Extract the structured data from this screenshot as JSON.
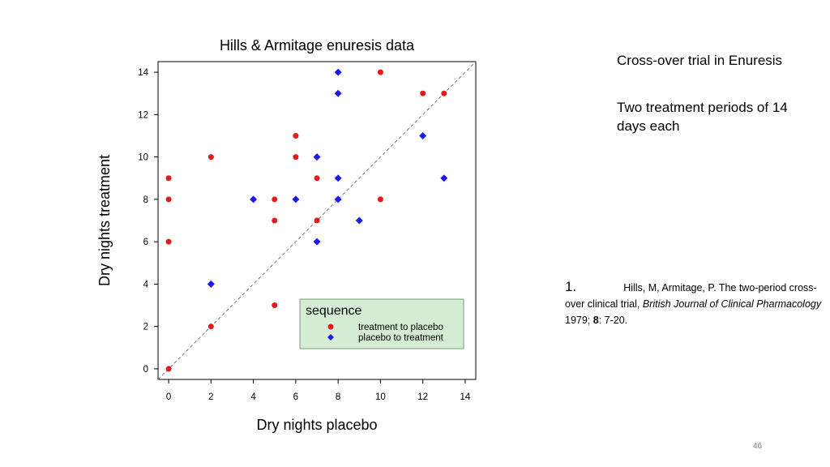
{
  "slide": {
    "text1": "Cross-over trial in Enuresis",
    "text2": "Two treatment periods of 14 days each",
    "reference": {
      "number": "1.",
      "authors": "Hills, M, Armitage, P. The two-period cross-over clinical trial,",
      "journal": "British Journal of Clinical Pharmacology",
      "year": "1979;",
      "volume": "8",
      "pages": ": 7-20."
    },
    "page_number": "46"
  },
  "chart_data": {
    "type": "scatter",
    "title": "Hills & Armitage enuresis data",
    "xlabel": "Dry nights placebo",
    "ylabel": "Dry nights treatment",
    "xlim": [
      -0.5,
      14.5
    ],
    "ylim": [
      -0.5,
      14.5
    ],
    "xticks": [
      0,
      2,
      4,
      6,
      8,
      10,
      12,
      14
    ],
    "yticks": [
      0,
      2,
      4,
      6,
      8,
      10,
      12,
      14
    ],
    "grid": false,
    "reference_line": "y = x (dashed)",
    "legend": {
      "title": "sequence",
      "placement": "bottom-right",
      "background": "#d4ecd4"
    },
    "series": [
      {
        "name": "treatment to placebo",
        "marker": "circle",
        "color": "#e41a1c",
        "points": [
          [
            0,
            0
          ],
          [
            0,
            6
          ],
          [
            0,
            8
          ],
          [
            0,
            9
          ],
          [
            2,
            2
          ],
          [
            2,
            10
          ],
          [
            5,
            3
          ],
          [
            5,
            7
          ],
          [
            5,
            8
          ],
          [
            6,
            10
          ],
          [
            6,
            11
          ],
          [
            7,
            7
          ],
          [
            7,
            9
          ],
          [
            10,
            8
          ],
          [
            10,
            14
          ],
          [
            12,
            13
          ],
          [
            13,
            13
          ]
        ]
      },
      {
        "name": "placebo to treatment",
        "marker": "diamond",
        "color": "#1a1aee",
        "points": [
          [
            2,
            4
          ],
          [
            4,
            8
          ],
          [
            6,
            8
          ],
          [
            7,
            6
          ],
          [
            7,
            10
          ],
          [
            8,
            8
          ],
          [
            8,
            9
          ],
          [
            8,
            13
          ],
          [
            8,
            14
          ],
          [
            9,
            7
          ],
          [
            12,
            11
          ],
          [
            13,
            9
          ]
        ]
      }
    ]
  }
}
